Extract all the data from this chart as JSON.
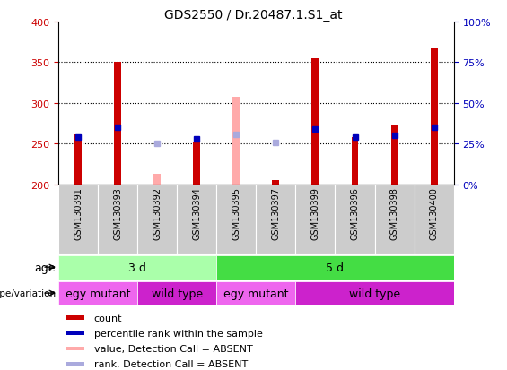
{
  "title": "GDS2550 / Dr.20487.1.S1_at",
  "samples": [
    "GSM130391",
    "GSM130393",
    "GSM130392",
    "GSM130394",
    "GSM130395",
    "GSM130397",
    "GSM130399",
    "GSM130396",
    "GSM130398",
    "GSM130400"
  ],
  "count_values": [
    262,
    350,
    null,
    252,
    null,
    205,
    355,
    258,
    273,
    367
  ],
  "count_absent": [
    null,
    null,
    213,
    null,
    308,
    null,
    null,
    null,
    null,
    null
  ],
  "rank_values": [
    258,
    270,
    null,
    256,
    null,
    null,
    268,
    258,
    260,
    270
  ],
  "rank_absent": [
    null,
    null,
    250,
    null,
    262,
    252,
    null,
    null,
    null,
    null
  ],
  "ylim": [
    200,
    400
  ],
  "yticks": [
    200,
    250,
    300,
    350,
    400
  ],
  "right_ylim": [
    0,
    100
  ],
  "right_yticks": [
    0,
    25,
    50,
    75,
    100
  ],
  "right_yticklabels": [
    "0%",
    "25%",
    "50%",
    "75%",
    "100%"
  ],
  "bar_color_present": "#cc0000",
  "bar_color_absent": "#ffaaaa",
  "rank_color_present": "#0000bb",
  "rank_color_absent": "#aaaadd",
  "age_color_3d": "#aaffaa",
  "age_color_5d": "#44dd44",
  "geno_color_egy": "#ee66ee",
  "geno_color_wild": "#cc22cc",
  "age_groups": [
    {
      "label": "3 d",
      "start": 0,
      "end": 4
    },
    {
      "label": "5 d",
      "start": 4,
      "end": 10
    }
  ],
  "genotype_groups": [
    {
      "label": "egy mutant",
      "start": 0,
      "end": 2
    },
    {
      "label": "wild type",
      "start": 2,
      "end": 4
    },
    {
      "label": "egy mutant",
      "start": 4,
      "end": 6
    },
    {
      "label": "wild type",
      "start": 6,
      "end": 10
    }
  ],
  "legend_items": [
    {
      "label": "count",
      "color": "#cc0000"
    },
    {
      "label": "percentile rank within the sample",
      "color": "#0000bb"
    },
    {
      "label": "value, Detection Call = ABSENT",
      "color": "#ffaaaa"
    },
    {
      "label": "rank, Detection Call = ABSENT",
      "color": "#aaaadd"
    }
  ],
  "xlabel_age": "age",
  "xlabel_genotype": "genotype/variation",
  "axis_label_color_left": "#cc0000",
  "axis_label_color_right": "#0000bb",
  "bar_width": 0.18,
  "rank_sq_size": 5
}
